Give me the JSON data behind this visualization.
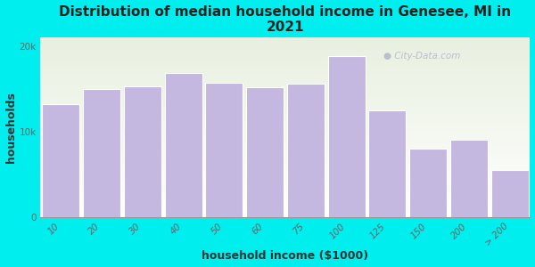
{
  "title": "Distribution of median household income in Genesee, MI in\n2021",
  "xlabel": "household income ($1000)",
  "ylabel": "households",
  "categories": [
    "10",
    "20",
    "30",
    "40",
    "50",
    "60",
    "75",
    "100",
    "125",
    "150",
    "200",
    "> 200"
  ],
  "values": [
    13200,
    15000,
    15300,
    16800,
    15700,
    15200,
    15600,
    18800,
    12500,
    8000,
    9000,
    5500
  ],
  "bar_color": "#C5B8E0",
  "bar_edgecolor": "#ffffff",
  "background_color": "#00EEEE",
  "plot_bg_top": "#e8f0e0",
  "plot_bg_bottom": "#ffffff",
  "ylim": [
    0,
    21000
  ],
  "yticks": [
    0,
    10000,
    20000
  ],
  "ytick_labels": [
    "0",
    "10k",
    "20k"
  ],
  "title_fontsize": 11,
  "axis_label_fontsize": 9,
  "tick_fontsize": 7.5,
  "watermark": "● City-Data.com"
}
